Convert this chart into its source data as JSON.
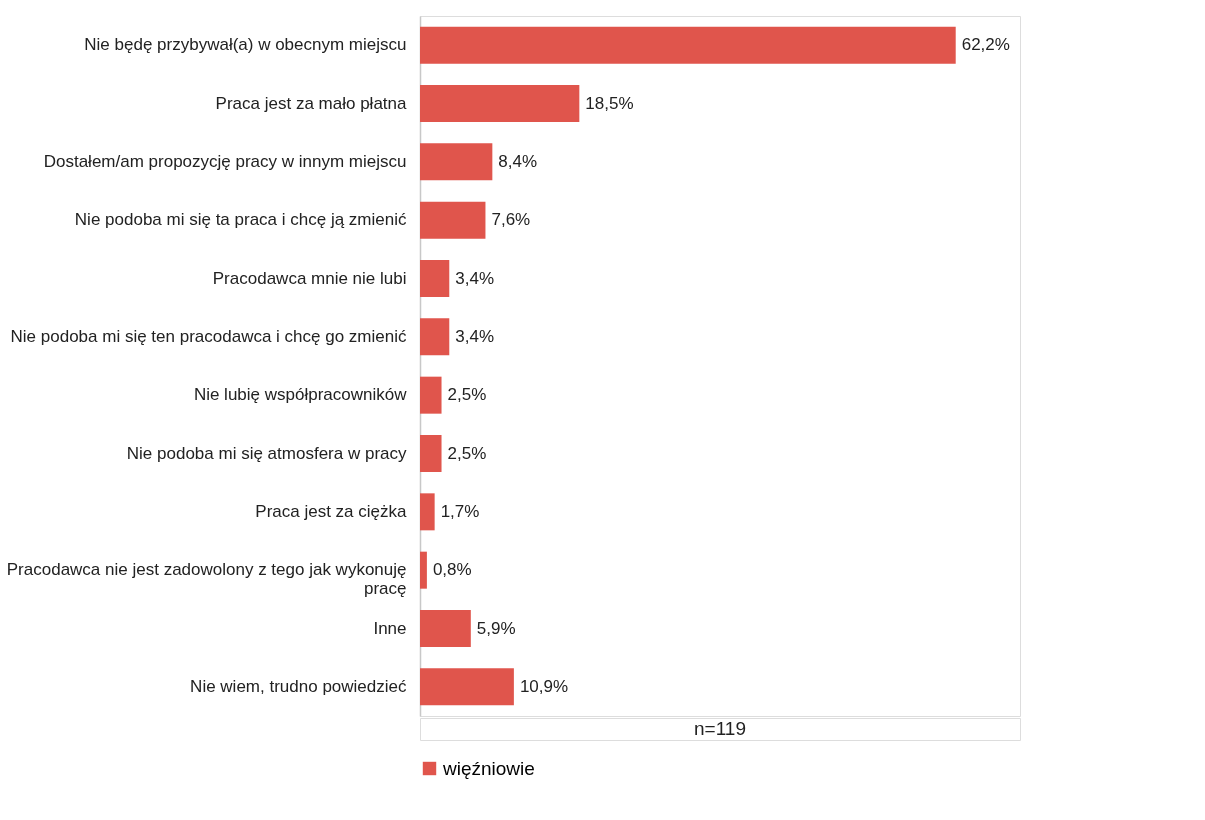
{
  "chart_data": {
    "type": "bar",
    "orientation": "horizontal",
    "categories": [
      "Nie będę przybywał(a) w obecnym miejscu",
      "Praca jest za mało płatna",
      "Dostałem/am propozycję pracy w innym miejscu",
      "Nie podoba mi się ta praca i chcę ją zmienić",
      "Pracodawca mnie nie lubi",
      "Nie podoba mi się ten pracodawca i chcę go zmienić",
      "Nie lubię współpracowników",
      "Nie podoba mi się atmosfera w pracy",
      "Praca jest za ciężka",
      "Pracodawca nie jest zadowolony z tego jak wykonuję pracę",
      "Inne",
      "Nie wiem, trudno powiedzieć"
    ],
    "series": [
      {
        "name": "więźniowie",
        "color": "#e0554c",
        "values": [
          62.2,
          18.5,
          8.4,
          7.6,
          3.4,
          3.4,
          2.5,
          2.5,
          1.7,
          0.8,
          5.9,
          10.9
        ],
        "value_labels": [
          "62,2%",
          "18,5%",
          "8,4%",
          "7,6%",
          "3,4%",
          "3,4%",
          "2,5%",
          "2,5%",
          "1,7%",
          "0,8%",
          "5,9%",
          "10,9%"
        ]
      }
    ],
    "legend": "bottom",
    "grid": false,
    "tick_labels": "y",
    "annotations": [
      "n=119"
    ]
  }
}
